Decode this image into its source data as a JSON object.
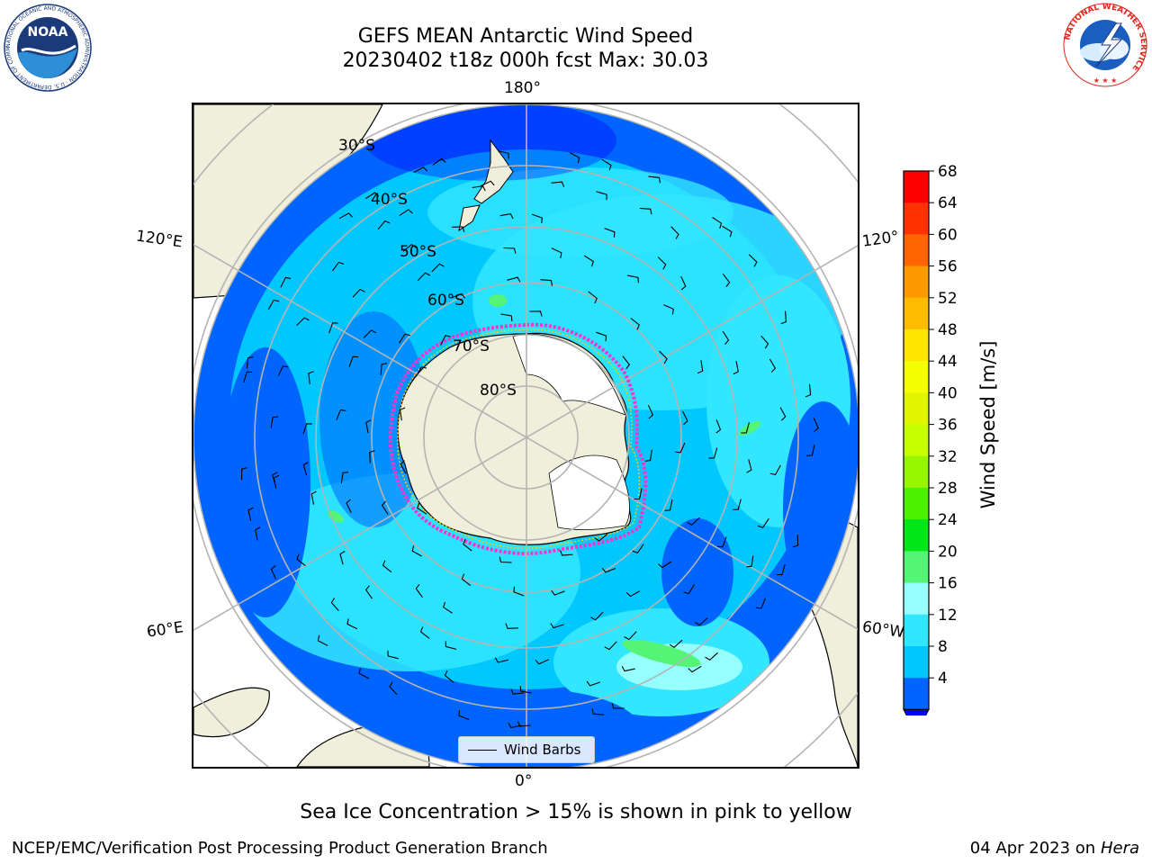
{
  "title": {
    "line1": "GEFS MEAN Antarctic Wind Speed",
    "line2": "20230402 t18z 000h fcst   Max: 30.03"
  },
  "map": {
    "projection": "south-polar-stereographic",
    "longitude_labels": [
      "180°",
      "120°E",
      "120°",
      "60°E",
      "60°W",
      "0°"
    ],
    "latitude_labels": [
      "30°S",
      "40°S",
      "50°S",
      "60°S",
      "70°S",
      "80°S"
    ],
    "legend_label": "Wind Barbs",
    "colors": {
      "land": "#efefdb",
      "ocean_4_8": "#0064ff",
      "ocean_8_12": "#00c8ff",
      "ocean_12_16": "#33e6ff",
      "ocean_16_20": "#96ffff",
      "ocean_20_24": "#54f577",
      "ice_edge": "#ff33cc",
      "ice_inner": "#ffc800",
      "grid": "#b4b4b4"
    }
  },
  "colorbar": {
    "label": "Wind Speed [m/s]",
    "ticks": [
      "68",
      "64",
      "60",
      "56",
      "52",
      "48",
      "44",
      "40",
      "36",
      "32",
      "28",
      "24",
      "20",
      "16",
      "12",
      "8",
      "4"
    ],
    "colors": [
      "#ff0000",
      "#ff3300",
      "#ff6600",
      "#ff9900",
      "#ffbb00",
      "#ffe600",
      "#f5ff00",
      "#e1f500",
      "#c8ff00",
      "#96f500",
      "#4bf000",
      "#00e619",
      "#54f577",
      "#96ffff",
      "#33e6ff",
      "#00c8ff",
      "#0064ff"
    ],
    "extend_color": "#0000ff"
  },
  "footnote": "Sea Ice Concentration > 15% is shown in pink to yellow",
  "credits": {
    "left": "NCEP/EMC/Verification Post Processing Product Generation Branch",
    "right_prefix": "04 Apr 2023 on",
    "right_host": "Hera"
  },
  "logos": {
    "noaa_text": "NOAA",
    "noaa_ring": "NATIONAL OCEANIC AND ATMOSPHERIC ADMINISTRATION · U.S. DEPARTMENT OF COMMERCE",
    "nws_ring": "NATIONAL WEATHER SERVICE"
  }
}
